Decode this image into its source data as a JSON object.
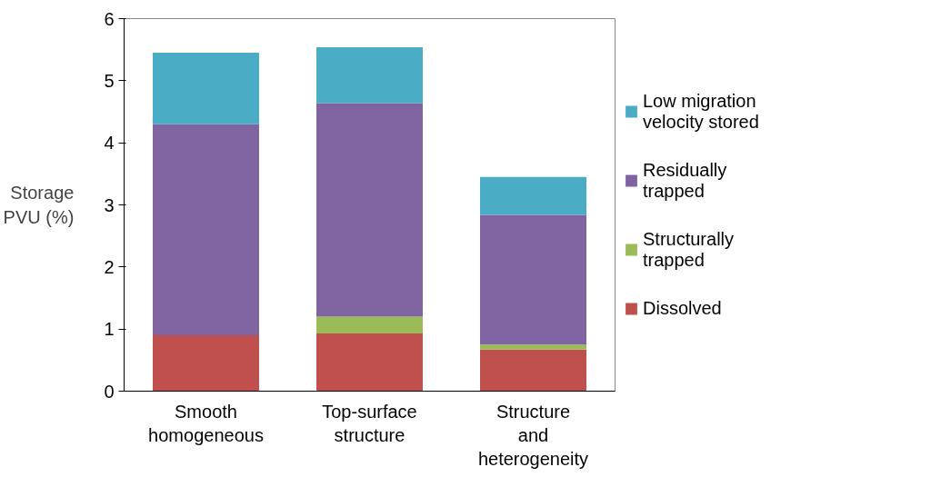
{
  "chart_data": {
    "type": "bar",
    "stacked": true,
    "ylabel": "Storage PVU (%)",
    "categories": [
      "Smooth homogeneous",
      "Top-surface structure",
      "Structure and heterogeneity"
    ],
    "series": [
      {
        "name": "Dissolved",
        "color": "#c0504d",
        "values": [
          0.9,
          0.93,
          0.67
        ]
      },
      {
        "name": "Structurally trapped",
        "color": "#9bbb59",
        "values": [
          0,
          0.27,
          0.08
        ]
      },
      {
        "name": "Residually trapped",
        "color": "#8064a2",
        "values": [
          3.4,
          3.44,
          2.09
        ]
      },
      {
        "name": "Low migration velocity stored",
        "color": "#4bacc6",
        "values": [
          1.15,
          0.9,
          0.61
        ]
      }
    ],
    "ylim": [
      0,
      6
    ],
    "yticks": [
      0,
      1,
      2,
      3,
      4,
      5,
      6
    ],
    "grid": false,
    "legend": "right"
  }
}
